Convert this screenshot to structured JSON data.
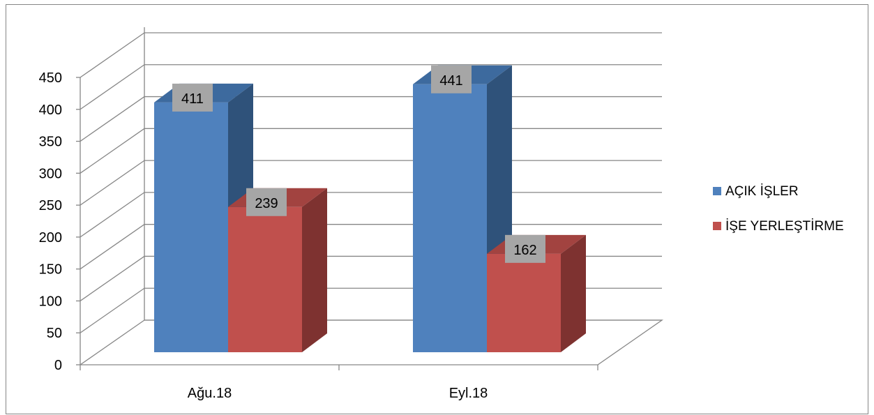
{
  "chart_data": {
    "type": "bar",
    "title": "",
    "xlabel": "",
    "ylabel": "",
    "categories": [
      "Ağu.18",
      "Eyl.18"
    ],
    "series": [
      {
        "name": "AÇIK İŞLER",
        "values": [
          411,
          441
        ],
        "color": "#4F81BD",
        "side_color": "#2F527A",
        "top_color": "#3D6A9E"
      },
      {
        "name": "İŞE YERLEŞTİRME",
        "values": [
          239,
          162
        ],
        "color": "#C0504D",
        "side_color": "#7E3230",
        "top_color": "#A24340"
      }
    ],
    "ylim": [
      0,
      450
    ],
    "yticks": [
      0,
      50,
      100,
      150,
      200,
      250,
      300,
      350,
      400,
      450
    ],
    "grid": true,
    "legend_position": "right",
    "data_labels": true,
    "data_label_background": "#A6A6A6",
    "gridline_color": "#868686",
    "three_d": true
  }
}
